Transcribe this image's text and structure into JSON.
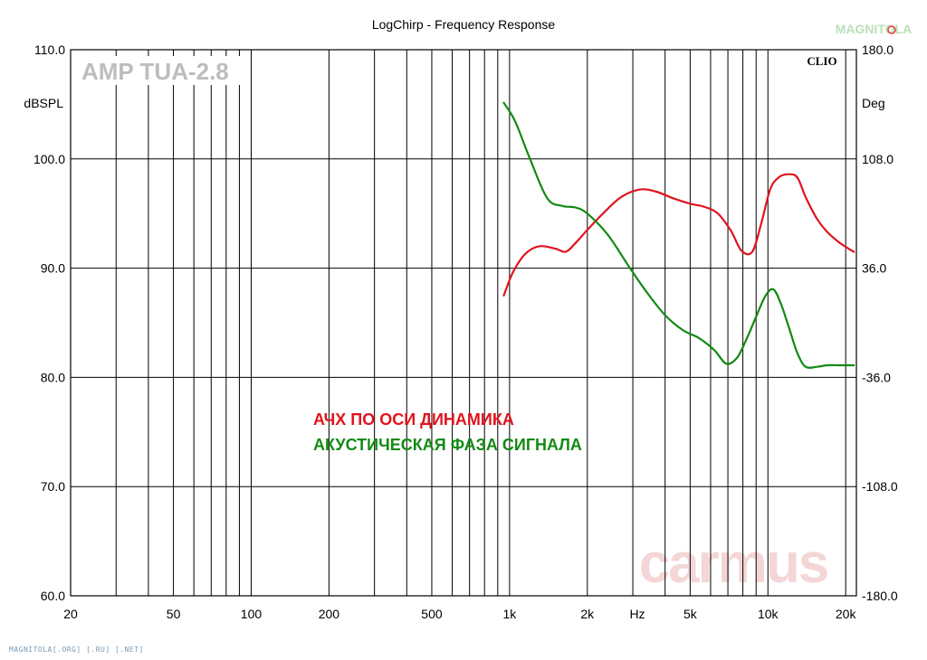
{
  "chart_data": {
    "type": "line",
    "title": "LogChirp - Frequency Response",
    "x_scale": "log",
    "x_unit": "Hz",
    "xlim": [
      20,
      22000
    ],
    "x_ticks": [
      {
        "value": 20,
        "label": "20"
      },
      {
        "value": 50,
        "label": "50"
      },
      {
        "value": 100,
        "label": "100"
      },
      {
        "value": 200,
        "label": "200"
      },
      {
        "value": 500,
        "label": "500"
      },
      {
        "value": 1000,
        "label": "1k"
      },
      {
        "value": 2000,
        "label": "2k"
      },
      {
        "value": 5000,
        "label": "5k"
      },
      {
        "value": 10000,
        "label": "10k"
      },
      {
        "value": 20000,
        "label": "20k"
      }
    ],
    "left_axis": {
      "label": "dBSPL",
      "ylim": [
        60,
        110
      ],
      "ticks": [
        {
          "value": 110,
          "label": "110.0"
        },
        {
          "value": 100,
          "label": "100.0"
        },
        {
          "value": 90,
          "label": "90.0"
        },
        {
          "value": 80,
          "label": "80.0"
        },
        {
          "value": 70,
          "label": "70.0"
        },
        {
          "value": 60,
          "label": "60.0"
        }
      ]
    },
    "right_axis": {
      "label": "Deg",
      "ylim": [
        -180,
        180
      ],
      "ticks": [
        {
          "value": 180,
          "label": "180.0"
        },
        {
          "value": 108,
          "label": "108.0"
        },
        {
          "value": 36,
          "label": "36.0"
        },
        {
          "value": -36,
          "label": "-36.0"
        },
        {
          "value": -108,
          "label": "-108.0"
        },
        {
          "value": -180,
          "label": "-180.0"
        }
      ]
    },
    "grid": true,
    "series": [
      {
        "name": "АЧХ ПО ОСИ ДИНАМИКА",
        "axis": "left",
        "color": "#e0141e",
        "x": [
          950,
          1030,
          1150,
          1300,
          1500,
          1650,
          1800,
          2000,
          2300,
          2700,
          3200,
          3700,
          4300,
          5000,
          5700,
          6400,
          7200,
          7900,
          8700,
          9400,
          10200,
          11000,
          12000,
          13000,
          14000,
          15500,
          17000,
          19000,
          20500,
          21500
        ],
        "y": [
          87.5,
          89.6,
          91.3,
          92.0,
          91.8,
          91.5,
          92.3,
          93.5,
          95.0,
          96.5,
          97.2,
          97.0,
          96.4,
          95.9,
          95.6,
          95.0,
          93.4,
          91.6,
          91.5,
          94.0,
          97.2,
          98.3,
          98.6,
          98.3,
          96.5,
          94.5,
          93.3,
          92.3,
          91.8,
          91.5
        ]
      },
      {
        "name": "АКУСТИЧЕСКАЯ ФАЗА СИГНАЛА",
        "axis": "right",
        "color": "#138a13",
        "x": [
          950,
          1050,
          1200,
          1400,
          1600,
          1800,
          2000,
          2400,
          2900,
          3400,
          4000,
          4700,
          5400,
          6200,
          6900,
          7600,
          8300,
          9000,
          9800,
          10500,
          11200,
          12000,
          13000,
          14000,
          15500,
          17000,
          19000,
          21500
        ],
        "y": [
          145,
          133,
          108,
          82,
          77,
          76,
          72,
          58,
          37,
          20,
          5,
          -5,
          -10,
          -18,
          -27,
          -23,
          -10,
          4,
          18,
          22,
          13,
          -2,
          -20,
          -29,
          -29,
          -28,
          -28,
          -28
        ]
      }
    ],
    "annotations": {
      "brand_label": "AMP TUA-2.8",
      "clio_label": "CLIO",
      "watermark": "carmus",
      "logo_text": "MAGNITOLA",
      "legend_red": "АЧХ ПО ОСИ ДИНАМИКА",
      "legend_green": "АКУСТИЧЕСКАЯ ФАЗА СИГНАЛА",
      "footer": "MAGNITOLA[.ORG] [.RU] [.NET]"
    },
    "colors": {
      "frequency_response": "#e0141e",
      "phase": "#138a13",
      "grid": "#000000",
      "brand_label": "#bdbdbd",
      "watermark": "#f4d6d6"
    }
  }
}
